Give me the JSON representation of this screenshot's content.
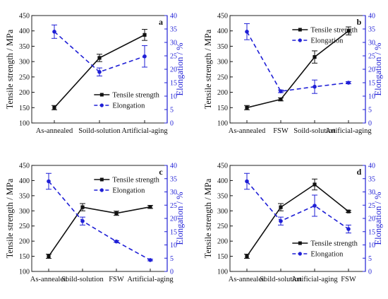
{
  "colors": {
    "tensile": "#111111",
    "elongation": "#1f1fd6",
    "axis_left": "#111111",
    "axis_right": "#1f1fd6",
    "frame": "#222222"
  },
  "chart_data": [
    {
      "type": "line",
      "panel_label": "a",
      "categories": [
        "As-annealed",
        "Soild-solution",
        "Artificial-aging"
      ],
      "ylabel": "Tensile strength / MPa",
      "y2label": "Elongation / %",
      "ylim": [
        100,
        450
      ],
      "y2lim": [
        0,
        40
      ],
      "yticks": [
        "100",
        "150",
        "200",
        "250",
        "300",
        "350",
        "400",
        "450"
      ],
      "y2ticks": [
        "0",
        "5",
        "10",
        "15",
        "20",
        "25",
        "30",
        "35",
        "40"
      ],
      "legend": "bottom-right",
      "series": [
        {
          "name": "Tensile strength",
          "axis": "left",
          "style": "solid",
          "values": [
            150,
            312,
            387
          ],
          "errors": [
            7,
            12,
            18
          ]
        },
        {
          "name": "Elongation",
          "axis": "right",
          "style": "dashed",
          "values": [
            34,
            19,
            24.8
          ],
          "errors": [
            2.5,
            1.5,
            4
          ]
        }
      ]
    },
    {
      "type": "line",
      "panel_label": "b",
      "categories": [
        "As-annealed",
        "FSW",
        "Soild-solution",
        "Artificial-aging"
      ],
      "ylabel": "Tensile strength / MPa",
      "y2label": "Elongation / %",
      "ylim": [
        100,
        450
      ],
      "y2lim": [
        0,
        40
      ],
      "yticks": [
        "100",
        "150",
        "200",
        "250",
        "300",
        "350",
        "400",
        "450"
      ],
      "y2ticks": [
        "0",
        "5",
        "10",
        "15",
        "20",
        "25",
        "30",
        "35",
        "40"
      ],
      "legend": "top-right",
      "series": [
        {
          "name": "Tensile strength",
          "axis": "left",
          "style": "solid",
          "values": [
            150,
            177,
            315,
            400
          ],
          "errors": [
            7,
            5,
            20,
            13
          ]
        },
        {
          "name": "Elongation",
          "axis": "right",
          "style": "dashed",
          "values": [
            34,
            11.8,
            13.5,
            15
          ],
          "errors": [
            3,
            0.5,
            2.5,
            0.4
          ]
        }
      ]
    },
    {
      "type": "line",
      "panel_label": "c",
      "categories": [
        "As-annealed",
        "Soild-solution",
        "FSW",
        "Artificial-aging"
      ],
      "ylabel": "Tensile strength / MPa",
      "y2label": "Elongation / %",
      "ylim": [
        100,
        450
      ],
      "y2lim": [
        0,
        40
      ],
      "yticks": [
        "100",
        "150",
        "200",
        "250",
        "300",
        "350",
        "400",
        "450"
      ],
      "y2ticks": [
        "0",
        "5",
        "10",
        "15",
        "20",
        "25",
        "30",
        "35",
        "40"
      ],
      "legend": "top-right",
      "series": [
        {
          "name": "Tensile strength",
          "axis": "left",
          "style": "solid",
          "values": [
            150,
            312,
            292,
            313
          ],
          "errors": [
            7,
            12,
            7,
            5
          ]
        },
        {
          "name": "Elongation",
          "axis": "right",
          "style": "dashed",
          "values": [
            34,
            19,
            11.3,
            4.3
          ],
          "errors": [
            3,
            1.5,
            0.3,
            0.3
          ]
        }
      ]
    },
    {
      "type": "line",
      "panel_label": "d",
      "categories": [
        "As-annealed",
        "Soild-solution",
        "Artificial-aging",
        "FSW"
      ],
      "ylabel": "Tensile strength / MPa",
      "y2label": "Elongation / %",
      "ylim": [
        100,
        450
      ],
      "y2lim": [
        0,
        40
      ],
      "yticks": [
        "100",
        "150",
        "200",
        "250",
        "300",
        "350",
        "400",
        "450"
      ],
      "y2ticks": [
        "0",
        "5",
        "10",
        "15",
        "20",
        "25",
        "30",
        "35",
        "40"
      ],
      "legend": "bottom-right",
      "series": [
        {
          "name": "Tensile strength",
          "axis": "left",
          "style": "solid",
          "values": [
            150,
            312,
            387,
            298
          ],
          "errors": [
            7,
            12,
            18,
            3
          ]
        },
        {
          "name": "Elongation",
          "axis": "right",
          "style": "dashed",
          "values": [
            34,
            19,
            24.8,
            16
          ],
          "errors": [
            3,
            1.5,
            4,
            1.5
          ]
        }
      ]
    }
  ]
}
